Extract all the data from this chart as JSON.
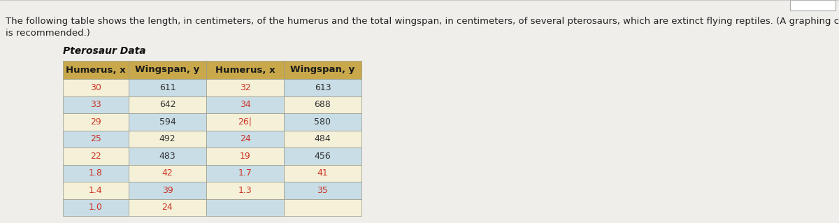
{
  "title_line1": "The following table shows the length, in centimeters, of the humerus and the total wingspan, in centimeters, of several pterosaurs, which are extinct flying reptiles. (A graphing ca",
  "title_line2": "is recommended.)",
  "table_title": "Pterosaur Data",
  "col_headers": [
    "Humerus, x",
    "Wingspan, y",
    "Humerus, x",
    "Wingspan, y"
  ],
  "col1": [
    "30",
    "33",
    "29",
    "25",
    "22",
    "1.8",
    "1.4",
    "1.0"
  ],
  "col2": [
    "611",
    "642",
    "594",
    "492",
    "483",
    "42",
    "39",
    "24"
  ],
  "col3": [
    "32",
    "34",
    "26",
    "24",
    "19",
    "1.7",
    "1.3",
    ""
  ],
  "col4": [
    "613",
    "688",
    "580",
    "484",
    "456",
    "41",
    "35",
    ""
  ],
  "header_bg": "#c8a84b",
  "header_text_color": "#1a1a1a",
  "row_bg_cream": "#f5f0d8",
  "row_bg_teal": "#c8dde6",
  "data_text_red": "#cc3322",
  "data_text_dark": "#333333",
  "border_color": "#999988",
  "fig_bg": "#e8e8e8",
  "page_bg": "#f0eeea",
  "title_fontsize": 9.5,
  "table_title_fontsize": 10,
  "cell_fontsize": 9,
  "header_fontsize": 9.5
}
